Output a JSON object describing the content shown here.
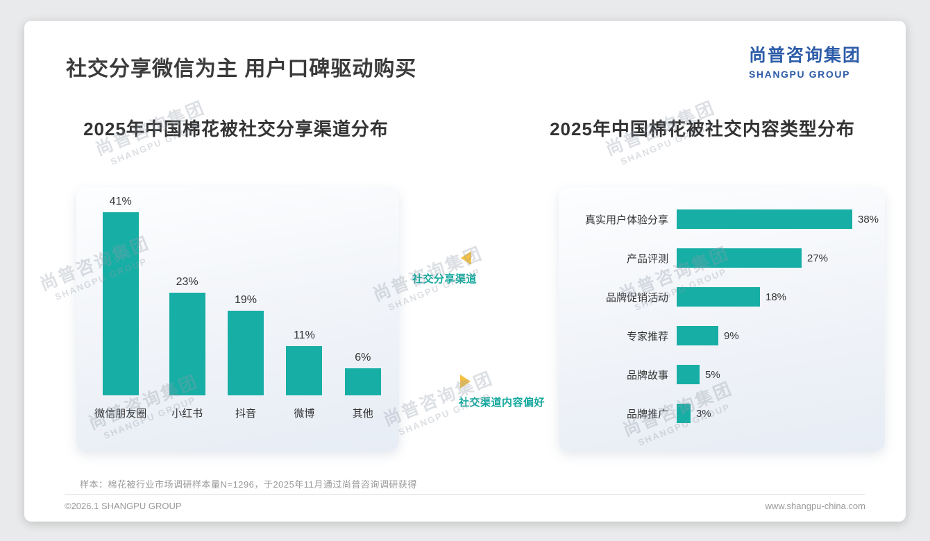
{
  "page": {
    "title": "社交分享微信为主 用户口碑驱动购买",
    "logo_cn": "尚普咨询集团",
    "logo_en": "SHANGPU GROUP",
    "watermark_cn": "尚普咨询集团",
    "watermark_en": "SHANGPU GROUP",
    "sample_note": "样本：棉花被行业市场调研样本量N=1296，于2025年11月通过尚普咨询调研获得",
    "footer_left": "©2026.1 SHANGPU GROUP",
    "footer_right": "www.shangpu-china.com"
  },
  "annotations": {
    "left_arrow_label": "社交分享渠道",
    "right_arrow_label": "社交渠道内容偏好"
  },
  "colors": {
    "bar_teal": "#17AEA5",
    "logo_blue": "#2D5CA8",
    "arrow_yellow": "#F6C143",
    "annotation_teal": "#12A79D"
  },
  "chart_data": [
    {
      "type": "bar",
      "orientation": "vertical",
      "title": "2025年中国棉花被社交分享渠道分布",
      "categories": [
        "微信朋友圈",
        "小红书",
        "抖音",
        "微博",
        "其他"
      ],
      "values": [
        41,
        23,
        19,
        11,
        6
      ],
      "unit": "%",
      "ylim": [
        0,
        45
      ],
      "grid": false,
      "legend": false
    },
    {
      "type": "bar",
      "orientation": "horizontal",
      "title": "2025年中国棉花被社交内容类型分布",
      "categories": [
        "真实用户体验分享",
        "产品评测",
        "品牌促销活动",
        "专家推荐",
        "品牌故事",
        "品牌推广"
      ],
      "values": [
        38,
        27,
        18,
        9,
        5,
        3
      ],
      "unit": "%",
      "xlim": [
        0,
        40
      ],
      "grid": false,
      "legend": false
    }
  ]
}
